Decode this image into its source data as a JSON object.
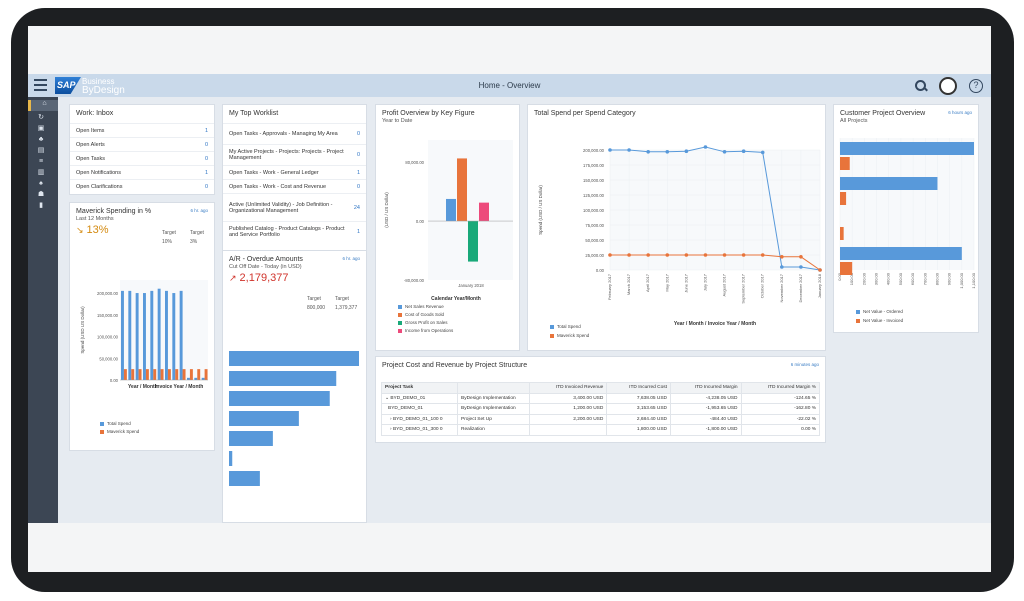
{
  "shell": {
    "title": "Home - Overview",
    "logo_sap": "SAP",
    "logo_business": "Business",
    "logo_bydesign": "ByDesign"
  },
  "inbox": {
    "title": "Work: Inbox",
    "items": [
      {
        "label": "Open Items",
        "value": "1"
      },
      {
        "label": "Open Alerts",
        "value": "0"
      },
      {
        "label": "Open Tasks",
        "value": "0"
      },
      {
        "label": "Open Notifications",
        "value": "1"
      },
      {
        "label": "Open Clarifications",
        "value": "0"
      }
    ]
  },
  "maverick": {
    "title": "Maverick Spending in %",
    "subtitle": "Last 12 Months",
    "ago": "6 hr. ago",
    "value": "13%",
    "target_label": "Target",
    "target_value": "10%",
    "target2_label": "Target",
    "target2_value": "3%",
    "ylabel": "Spend (USD US Dollar)",
    "xlabel_1": "Year / Month",
    "xlabel_2": "Invoice Year / Month",
    "yticks": [
      "200,000.00",
      "150,000.00",
      "100,000.00",
      "50,000.00",
      "0.00"
    ],
    "legend": [
      "Total Spend",
      "Maverick Spend"
    ]
  },
  "worklist": {
    "title": "My Top Worklist",
    "items": [
      {
        "label": "Open Tasks - Approvals - Managing My Area",
        "value": "0"
      },
      {
        "label": "My Active Projects - Projects: Projects - Project Management",
        "value": "0"
      },
      {
        "label": "Open Tasks - Work - General Ledger",
        "value": "1"
      },
      {
        "label": "Open Tasks - Work - Cost and Revenue",
        "value": "0"
      },
      {
        "label": "Active (Unlimited Validity) - Job Definition - Organizational Management",
        "value": "24"
      },
      {
        "label": "Published Catalog - Product Catalogs - Product and Service Portfolio",
        "value": "1"
      }
    ]
  },
  "ar": {
    "title": "A/R - Overdue Amounts",
    "subtitle": "Cut Off Date - Today (in USD)",
    "ago": "6 hr. ago",
    "value": "2,179,377",
    "target_label": "Target",
    "target_value": "800,000",
    "target2_label": "Target",
    "target2_value": "1,379,377"
  },
  "profit": {
    "title": "Profit Overview by Key Figure",
    "subtitle": "Year to Date",
    "ylabel": "(USD / US Dollar)",
    "xlabel": "Calendar Year/Month",
    "category": "January 2018",
    "yticks": [
      "80,000.00",
      "0.00",
      "-80,000.00"
    ],
    "legend": [
      "Net Sales Revenue",
      "Cost of Goods Sold",
      "Gross Profit on Sales",
      "Income from Operations"
    ]
  },
  "spend": {
    "title": "Total Spend per Spend Category",
    "ylabel": "Spend (USD / US Dollar)",
    "xlabel": "Year / Month / Invoice Year / Month",
    "yticks": [
      "200,000.00",
      "175,000.00",
      "150,000.00",
      "125,000.00",
      "100,000.00",
      "75,000.00",
      "50,000.00",
      "25,000.00",
      "0.00"
    ],
    "months": [
      "February 2017",
      "March 2017",
      "April 2017",
      "May 2017",
      "June 2017",
      "July 2017",
      "August 2017",
      "September 2017",
      "October 2017",
      "November 2017",
      "December 2017",
      "January 2018"
    ],
    "legend": [
      "Total Spend",
      "Maverick Spend"
    ]
  },
  "customer": {
    "title": "Customer Project Overview",
    "subtitle": "All Projects",
    "ago": "6 hours ago",
    "legend": [
      "Net Value - Ordered",
      "Net Value - Invoiced"
    ],
    "xticks": [
      "0.00",
      "100.00",
      "200.00",
      "300.00",
      "400.00",
      "500.00",
      "600.00",
      "700.00",
      "800.00",
      "900.00",
      "1,000.00",
      "1,100.00"
    ]
  },
  "project": {
    "title": "Project Cost and Revenue by Project Structure",
    "ago": "6 minutes ago",
    "headers": [
      "Project Task",
      "",
      "ITD Invoiced Revenue",
      "ITD Incurred Cost",
      "ITD Incurred Margin",
      "ITD Incurred Margin %"
    ],
    "rows": [
      {
        "task": "BYD_DEMO_01",
        "desc": "ByDesign Implementation",
        "rev": "3,400.00 USD",
        "cost": "7,638.05 USD",
        "margin": "-4,238.05 USD",
        "pct": "-124.65 %"
      },
      {
        "task": "BYD_DEMO_01",
        "desc": "ByDesign Implementation",
        "rev": "1,200.00 USD",
        "cost": "3,153.65 USD",
        "margin": "-1,953.65 USD",
        "pct": "-162.80 %"
      },
      {
        "task": "BYD_DEMO_01_100 0",
        "desc": "Project Set Up",
        "rev": "2,200.00 USD",
        "cost": "2,684.40 USD",
        "margin": "-484.40 USD",
        "pct": "-22.02 %"
      },
      {
        "task": "BYD_DEMO_01_300 0",
        "desc": "Realization",
        "rev": "",
        "cost": "1,800.00 USD",
        "margin": "-1,800.00 USD",
        "pct": "0.00 %"
      }
    ]
  },
  "chart_data": [
    {
      "type": "bar",
      "title": "Maverick Spending in %",
      "categories": [
        "1",
        "2",
        "3",
        "4",
        "5",
        "6",
        "7",
        "8",
        "9",
        "10",
        "11",
        "12"
      ],
      "series": [
        {
          "name": "Total Spend",
          "values": [
            205000,
            205000,
            200000,
            200000,
            205000,
            210000,
            205000,
            200000,
            205000,
            5000,
            5000,
            5000
          ]
        },
        {
          "name": "Maverick Spend",
          "values": [
            25000,
            25000,
            25000,
            25000,
            25000,
            25000,
            25000,
            25000,
            25000,
            25000,
            25000,
            25000
          ]
        }
      ],
      "ylim": [
        0,
        230000
      ]
    },
    {
      "type": "bar",
      "title": "A/R - Overdue Amounts",
      "orientation": "horizontal",
      "values": [
        800000,
        660000,
        620000,
        430000,
        270000,
        20000,
        190000
      ]
    },
    {
      "type": "bar",
      "title": "Profit Overview by Key Figure",
      "categories": [
        "January 2018"
      ],
      "series": [
        {
          "name": "Net Sales Revenue",
          "values": [
            30000
          ]
        },
        {
          "name": "Cost of Goods Sold",
          "values": [
            85000
          ]
        },
        {
          "name": "Gross Profit on Sales",
          "values": [
            -55000
          ]
        },
        {
          "name": "Income from Operations",
          "values": [
            25000
          ]
        }
      ],
      "ylim": [
        -80000,
        110000
      ]
    },
    {
      "type": "line",
      "title": "Total Spend per Spend Category",
      "x": [
        "February 2017",
        "March 2017",
        "April 2017",
        "May 2017",
        "June 2017",
        "July 2017",
        "August 2017",
        "September 2017",
        "October 2017",
        "November 2017",
        "December 2017",
        "January 2018"
      ],
      "series": [
        {
          "name": "Total Spend",
          "values": [
            200000,
            200000,
            197000,
            197000,
            198000,
            205000,
            197000,
            198000,
            196000,
            5000,
            5000,
            0
          ]
        },
        {
          "name": "Maverick Spend",
          "values": [
            25000,
            25000,
            25000,
            25000,
            25000,
            25000,
            25000,
            25000,
            25000,
            22000,
            22000,
            0
          ]
        }
      ],
      "ylim": [
        0,
        200000
      ]
    },
    {
      "type": "bar",
      "title": "Customer Project Overview",
      "orientation": "horizontal",
      "series": [
        {
          "name": "Net Value - Ordered",
          "values": [
            1100,
            800,
            0,
            1000
          ]
        },
        {
          "name": "Net Value - Invoiced",
          "values": [
            80,
            50,
            30,
            100
          ]
        }
      ],
      "xlim": [
        0,
        1100
      ]
    }
  ]
}
